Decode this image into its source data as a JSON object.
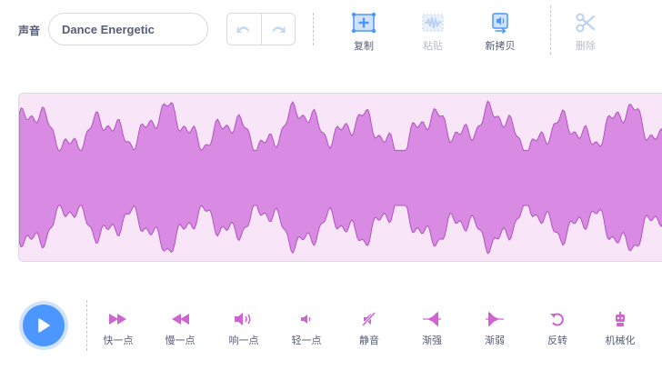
{
  "toolbar": {
    "sound_label": "声音",
    "sound_name": "Dance Energetic",
    "tools": [
      {
        "label": "复制",
        "icon": "copy-icon",
        "enabled": true
      },
      {
        "label": "粘贴",
        "icon": "paste-icon",
        "enabled": false
      },
      {
        "label": "新拷贝",
        "icon": "copy-to-new-icon",
        "enabled": true
      }
    ],
    "delete_label": "删除"
  },
  "effects": [
    {
      "label": "快一点",
      "icon": "faster-icon"
    },
    {
      "label": "慢一点",
      "icon": "slower-icon"
    },
    {
      "label": "响一点",
      "icon": "louder-icon"
    },
    {
      "label": "轻一点",
      "icon": "softer-icon"
    },
    {
      "label": "静音",
      "icon": "mute-icon"
    },
    {
      "label": "渐强",
      "icon": "fade-in-icon"
    },
    {
      "label": "渐弱",
      "icon": "fade-out-icon"
    },
    {
      "label": "反转",
      "icon": "reverse-icon"
    },
    {
      "label": "机械化",
      "icon": "robot-icon"
    }
  ],
  "colors": {
    "accent": "#4c97ff",
    "waveform_fill": "#d98be3",
    "waveform_stroke": "#b053bf",
    "waveform_bg": "#f9e5f8",
    "disabled": "#b8bcc6"
  }
}
